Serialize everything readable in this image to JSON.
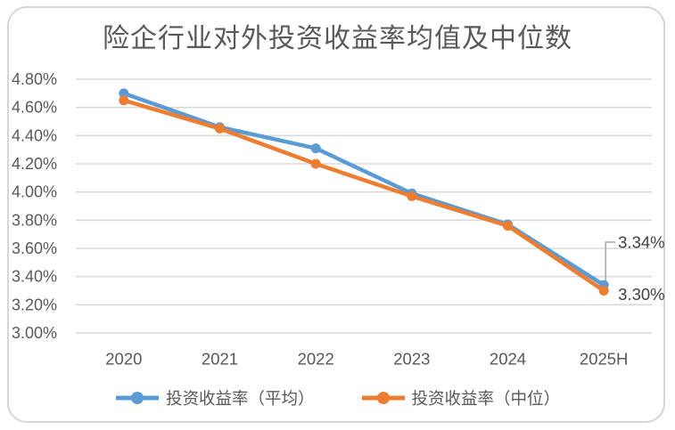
{
  "chart_data": {
    "type": "line",
    "title": "险企行业对外投资收益率均值及中位数",
    "categories": [
      "2020",
      "2021",
      "2022",
      "2023",
      "2024",
      "2025H"
    ],
    "series": [
      {
        "name": "投资收益率（平均）",
        "color": "#5B9BD5",
        "values": [
          4.7,
          4.46,
          4.31,
          3.99,
          3.77,
          3.34
        ]
      },
      {
        "name": "投资收益率（中位）",
        "color": "#ED7D31",
        "values": [
          4.65,
          4.45,
          4.2,
          3.97,
          3.76,
          3.3
        ]
      }
    ],
    "ylim": [
      3.0,
      4.8
    ],
    "ytick_step": 0.2,
    "ytick_labels_top_to_bottom": [
      "4.80%",
      "4.60%",
      "4.40%",
      "4.20%",
      "4.00%",
      "3.80%",
      "3.60%",
      "3.40%",
      "3.20%",
      "3.00%"
    ],
    "grid": true,
    "legend_position": "bottom",
    "annotations": [
      {
        "text": "3.34%",
        "series_index": 0,
        "point_index": 5,
        "leader": true
      },
      {
        "text": "3.30%",
        "series_index": 1,
        "point_index": 5,
        "leader": false
      }
    ],
    "colors": {
      "gridline": "#D9D9D9",
      "axis_text": "#595959",
      "data_label_text": "#404040",
      "leader_line": "#A6A6A6",
      "card_border": "#D6D6D6"
    }
  }
}
